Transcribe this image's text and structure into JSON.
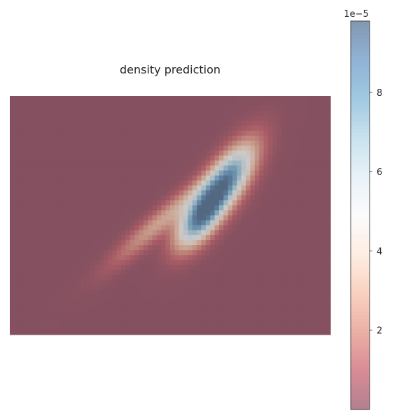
{
  "chart_data": {
    "type": "heatmap",
    "title": "density prediction",
    "colormap": "RdBu",
    "colormap_alpha": 0.5,
    "colorbar": {
      "vmin": 0,
      "vmax": 9.8e-05,
      "offset_label": "1e−5",
      "ticks": [
        {
          "value": 2e-05,
          "label": "2"
        },
        {
          "value": 4e-05,
          "label": "4"
        },
        {
          "value": 6e-05,
          "label": "6"
        },
        {
          "value": 8e-05,
          "label": "8"
        }
      ]
    },
    "grid_size": [
      48,
      72
    ],
    "background_level": 5e-07,
    "density_blobs": [
      {
        "row": 17,
        "col": 48,
        "sigma_major": 6.5,
        "sigma_minor": 2.6,
        "angle_deg": -52,
        "peak": 8.6e-05
      },
      {
        "row": 24,
        "col": 42,
        "sigma_major": 5.0,
        "sigma_minor": 2.4,
        "angle_deg": -52,
        "peak": 7.1e-05
      },
      {
        "row": 25,
        "col": 33,
        "sigma_major": 9.0,
        "sigma_minor": 1.6,
        "angle_deg": -38,
        "peak": 2.8e-05
      }
    ],
    "grid": false,
    "axes_visible": false
  }
}
